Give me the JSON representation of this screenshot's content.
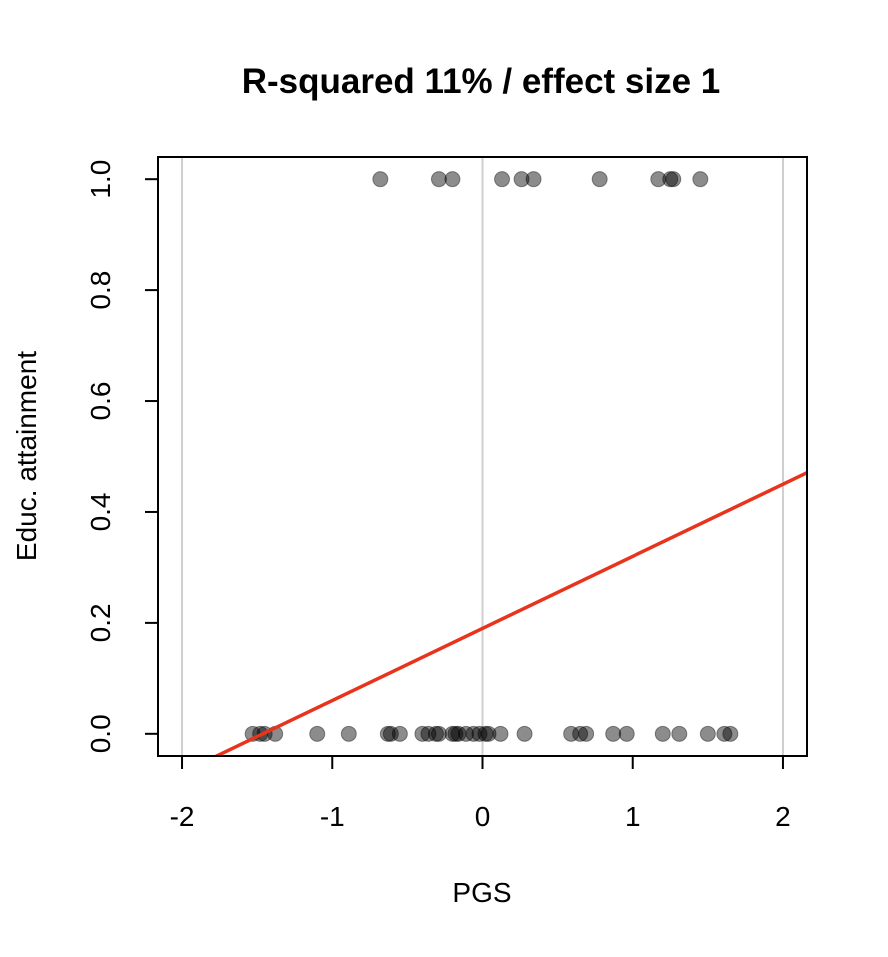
{
  "chart_data": {
    "type": "scatter",
    "title": "R-squared 11% / effect size 1",
    "xlabel": "PGS",
    "ylabel": "Educ. attainment",
    "xlim": [
      -2.16,
      2.16
    ],
    "ylim": [
      -0.04,
      1.04
    ],
    "x_ticks": [
      -2,
      -1,
      0,
      1,
      2
    ],
    "x_tick_labels": [
      "-2",
      "-1",
      "0",
      "1",
      "2"
    ],
    "y_ticks": [
      0.0,
      0.2,
      0.4,
      0.6,
      0.8,
      1.0
    ],
    "y_tick_labels": [
      "0.0",
      "0.2",
      "0.4",
      "0.6",
      "0.8",
      "1.0"
    ],
    "vertical_gridlines_at": [
      -2,
      0,
      2
    ],
    "series": [
      {
        "kind": "points",
        "color": "#000000",
        "opacity": 0.45,
        "x": [
          -0.68,
          -0.29,
          -0.2,
          0.13,
          0.26,
          0.34,
          0.78,
          1.17,
          1.25,
          1.27,
          1.45,
          -1.53,
          -1.48,
          -1.45,
          -1.38,
          -1.1,
          -0.89,
          -0.63,
          -0.61,
          -0.55,
          -0.4,
          -0.36,
          -0.31,
          -0.29,
          -0.2,
          -0.18,
          -0.16,
          -0.11,
          -0.06,
          -0.02,
          0.02,
          0.04,
          0.12,
          0.28,
          0.59,
          0.65,
          0.69,
          0.87,
          0.96,
          1.2,
          1.31,
          1.5,
          1.61,
          1.65
        ],
        "y": [
          1,
          1,
          1,
          1,
          1,
          1,
          1,
          1,
          1,
          1,
          1,
          0,
          0,
          0,
          0,
          0,
          0,
          0,
          0,
          0,
          0,
          0,
          0,
          0,
          0,
          0,
          0,
          0,
          0,
          0,
          0,
          0,
          0,
          0,
          0,
          0,
          0,
          0,
          0,
          0,
          0,
          0,
          0,
          0
        ]
      },
      {
        "kind": "line",
        "color": "#e8341c",
        "intercept": 0.19,
        "slope": 0.13
      }
    ]
  }
}
